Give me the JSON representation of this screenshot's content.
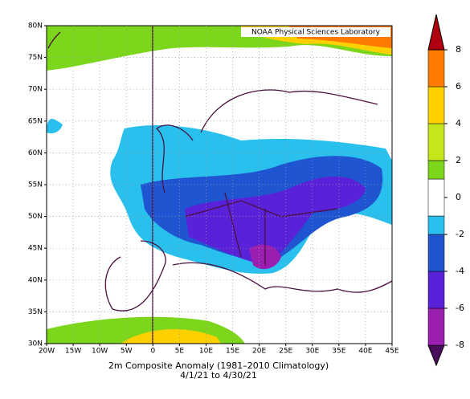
{
  "map": {
    "credit": "NOAA Physical Sciences Laboratory",
    "title": "2m   Composite Anomaly (1981–2010 Climatology)",
    "subtitle": "4/1/21  to 4/30/21",
    "lon_labels": [
      "20W",
      "15W",
      "10W",
      "5W",
      "0",
      "5E",
      "10E",
      "15E",
      "20E",
      "25E",
      "30E",
      "35E",
      "40E",
      "45E"
    ],
    "lat_labels": [
      "80N",
      "75N",
      "70N",
      "65N",
      "60N",
      "55N",
      "50N",
      "45N",
      "40N",
      "35N",
      "30N"
    ]
  },
  "colorbar": {
    "ylim": [
      -8,
      8
    ],
    "yticks": [
      -8,
      -6,
      -4,
      -2,
      0,
      2,
      4,
      6,
      8
    ],
    "levels": [
      -8,
      -6,
      -4,
      -2,
      -1,
      1,
      2,
      4,
      6,
      8
    ],
    "colors": [
      "#4b0b5c",
      "#9a1fb0",
      "#5a22d8",
      "#1f55d0",
      "#29c0ee",
      "#ffffff",
      "#7cd61c",
      "#c4e61a",
      "#ffd000",
      "#ff7a00",
      "#b00010"
    ]
  }
}
